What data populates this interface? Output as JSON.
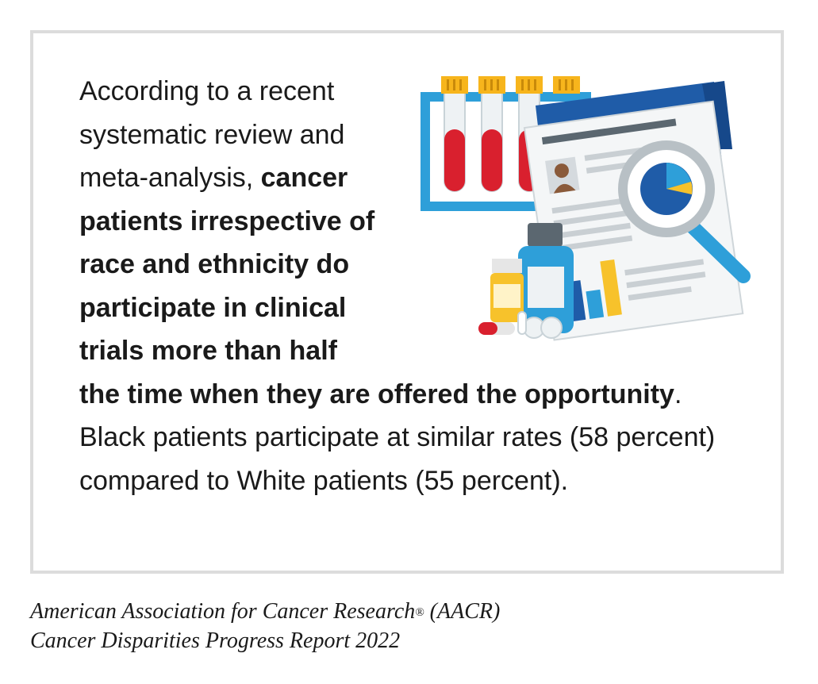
{
  "body": {
    "intro": "According to a recent systematic review and meta-analysis, ",
    "emphasis": "cancer patients irrespective of race and ethnicity do participate in clinical trials more than half the time when they are offered the opportunity",
    "rest": ". Black patients participate at similar rates (58 percent) compared to White patients (55 percent)."
  },
  "citation": {
    "line1": "American Association for Cancer Research",
    "registered_mark": "®",
    "line1_suffix": " (AACR)",
    "line2": "Cancer Disparities Progress Report 2022"
  },
  "colors": {
    "blood": "#d9202e",
    "cap": "#f7b51c",
    "rack": "#2e9fd9",
    "folder": "#1f5ca8",
    "accent_yellow": "#f7c22b",
    "bottle": "#2e9fd9"
  }
}
